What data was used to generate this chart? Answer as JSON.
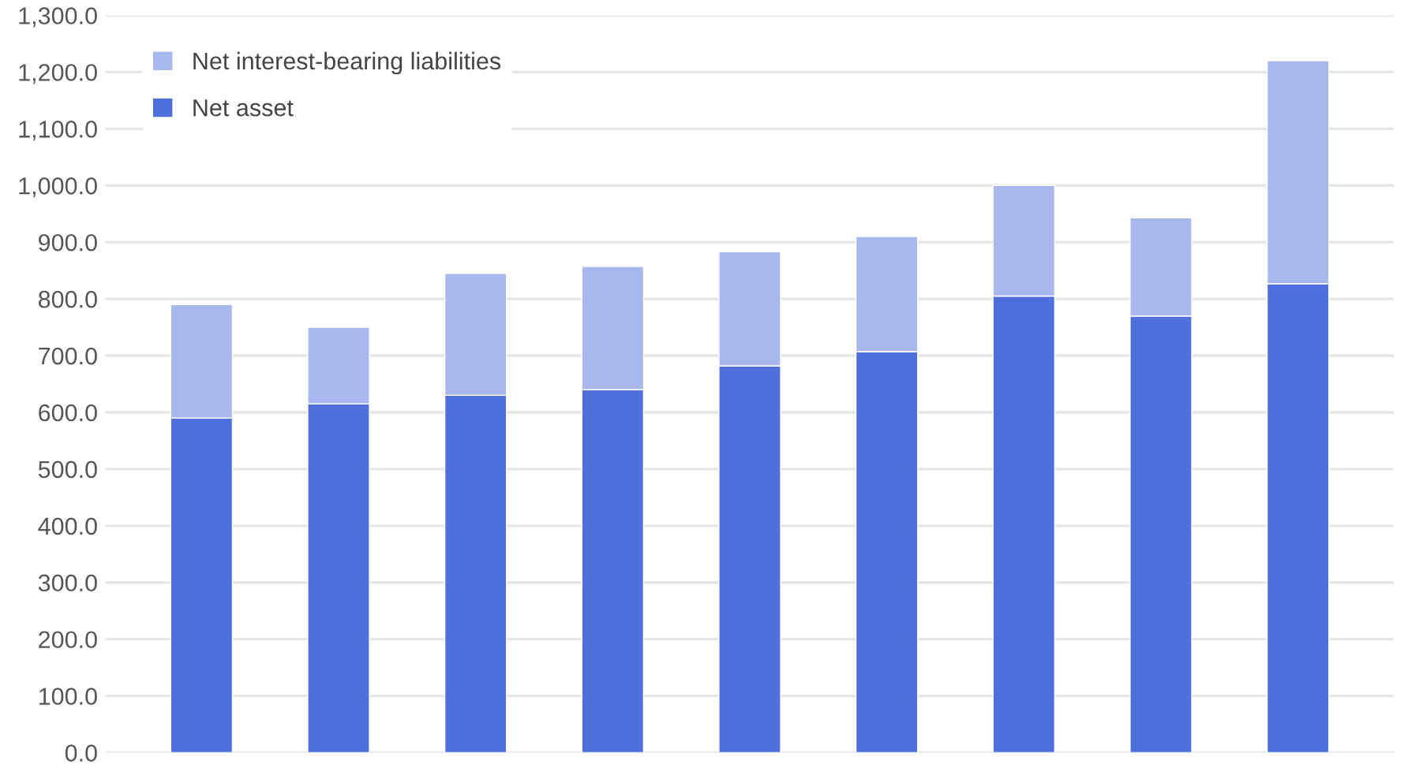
{
  "chart_data": {
    "type": "bar",
    "stacked": true,
    "categories": [
      null,
      null,
      null,
      null,
      null,
      null,
      null,
      null,
      null
    ],
    "series": [
      {
        "name": "Net asset",
        "color": "#4f6fdc",
        "values": [
          590,
          615,
          630,
          640,
          682,
          707,
          805,
          770,
          827
        ]
      },
      {
        "name": "Net interest-bearing liabilities",
        "color": "#a8b7ee",
        "values": [
          200,
          135,
          215,
          217,
          201,
          203,
          195,
          173,
          393
        ]
      }
    ],
    "ylim": [
      0,
      1300
    ],
    "yticks": [
      {
        "value": 0,
        "label": "0.0"
      },
      {
        "value": 100,
        "label": "100.0"
      },
      {
        "value": 200,
        "label": "200.0"
      },
      {
        "value": 300,
        "label": "300.0"
      },
      {
        "value": 400,
        "label": "400.0"
      },
      {
        "value": 500,
        "label": "500.0"
      },
      {
        "value": 600,
        "label": "600.0"
      },
      {
        "value": 700,
        "label": "700.0"
      },
      {
        "value": 800,
        "label": "800.0"
      },
      {
        "value": 900,
        "label": "900.0"
      },
      {
        "value": 1000,
        "label": "1,000.0"
      },
      {
        "value": 1100,
        "label": "1,100.0"
      },
      {
        "value": 1200,
        "label": "1,200.0"
      },
      {
        "value": 1300,
        "label": "1,300.0"
      }
    ],
    "grid": "y",
    "legend": "top left",
    "tick_labels": "y"
  }
}
